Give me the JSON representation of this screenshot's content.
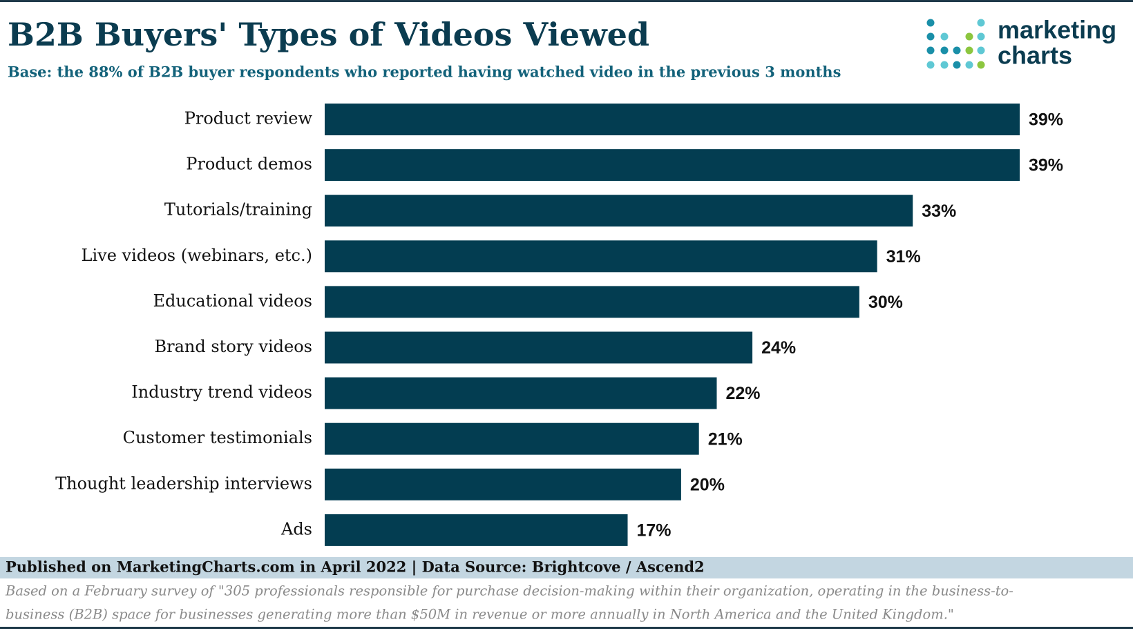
{
  "chart_data": {
    "type": "bar",
    "orientation": "horizontal",
    "title": "B2B Buyers' Types of Videos Viewed",
    "subtitle": "Base: the 88% of B2B buyer respondents who reported having watched video in the previous 3 months",
    "categories": [
      "Product review",
      "Product demos",
      "Tutorials/training",
      "Live videos (webinars, etc.)",
      "Educational videos",
      "Brand story videos",
      "Industry trend videos",
      "Customer testimonials",
      "Thought leadership interviews",
      "Ads"
    ],
    "values": [
      39,
      39,
      33,
      31,
      30,
      24,
      22,
      21,
      20,
      17
    ],
    "value_labels": [
      "39%",
      "39%",
      "33%",
      "31%",
      "30%",
      "24%",
      "22%",
      "21%",
      "20%",
      "17%"
    ],
    "color": "#033d51"
  },
  "logo": [
    "marketing",
    "charts"
  ],
  "footer": {
    "published": "Published on MarketingCharts.com in April 2022 | Data Source: Brightcove / Ascend2",
    "note": [
      "Based on a February survey of \"305 professionals responsible for purchase decision-making within their organization, operating in the business-to-",
      "business (B2B) space for businesses generating more than $50M in revenue or more annually in North America and the United Kingdom.\""
    ]
  }
}
